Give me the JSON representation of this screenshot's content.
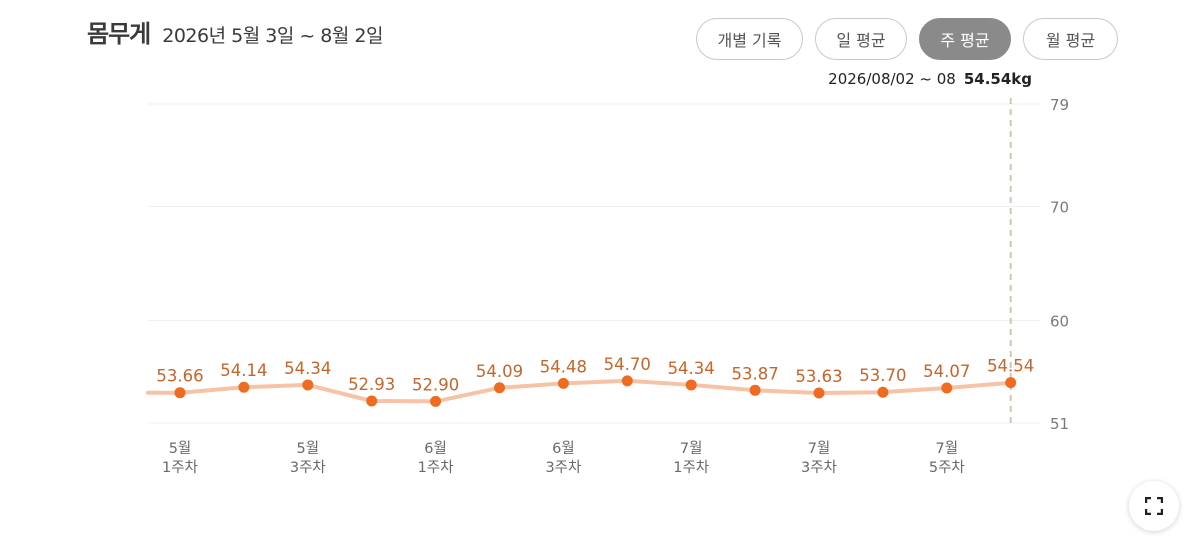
{
  "header": {
    "title": "몸무게",
    "range": "2026년 5월 3일 ~ 8월 2일"
  },
  "tabs": [
    {
      "label": "개별 기록",
      "active": false
    },
    {
      "label": "일 평균",
      "active": false
    },
    {
      "label": "주 평균",
      "active": true
    },
    {
      "label": "월 평균",
      "active": false
    }
  ],
  "selection": {
    "period": "2026/08/02 ~ 08",
    "value": "54.54kg"
  },
  "icons": {
    "expand": "expand-icon"
  },
  "colors": {
    "line": "#f6c3a6",
    "point": "#ee6b1f",
    "label": "#c8642a",
    "active_tab": "#8a8a8a",
    "cursor": "#cfc6b0"
  },
  "chart_data": {
    "type": "line",
    "yticks": [
      51,
      60,
      70,
      79
    ],
    "ylim": [
      51,
      79
    ],
    "grid": true,
    "x_tick_labels": [
      {
        "index": 0,
        "month": "5월",
        "week": "1주차"
      },
      {
        "index": 2,
        "month": "5월",
        "week": "3주차"
      },
      {
        "index": 4,
        "month": "6월",
        "week": "1주차"
      },
      {
        "index": 6,
        "month": "6월",
        "week": "3주차"
      },
      {
        "index": 8,
        "month": "7월",
        "week": "1주차"
      },
      {
        "index": 10,
        "month": "7월",
        "week": "3주차"
      },
      {
        "index": 12,
        "month": "7월",
        "week": "5주차"
      }
    ],
    "series": [
      {
        "values": [
          53.66,
          54.14,
          54.34,
          52.93,
          52.9,
          54.09,
          54.48,
          54.7,
          54.34,
          53.87,
          53.63,
          53.7,
          54.07,
          54.54
        ],
        "labels": [
          "53.66",
          "54.14",
          "54.34",
          "52.93",
          "52.90",
          "54.09",
          "54.48",
          "54.70",
          "54.34",
          "53.87",
          "53.63",
          "53.70",
          "54.07",
          "54.54"
        ]
      }
    ],
    "lead_in_value": 53.66,
    "selected_index": 13
  }
}
